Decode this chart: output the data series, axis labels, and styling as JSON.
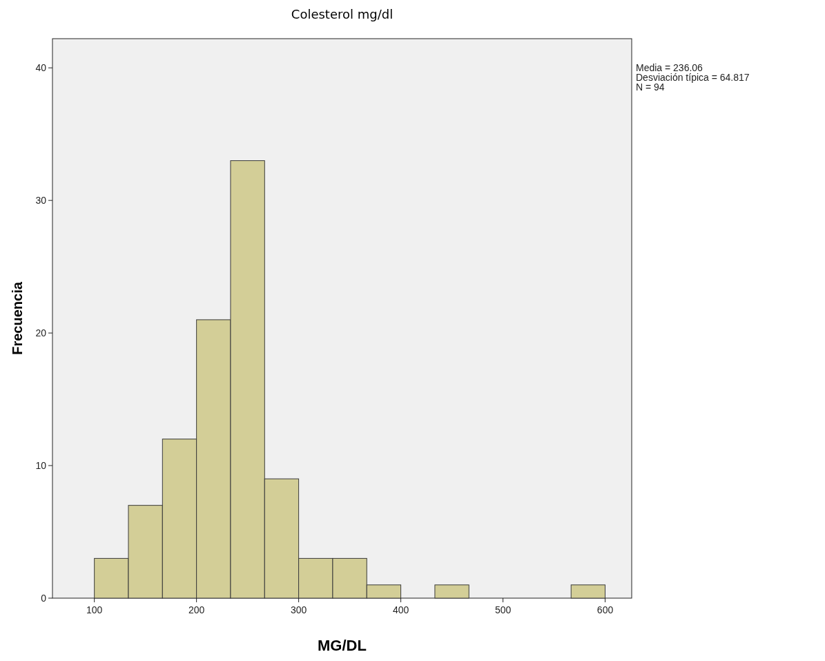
{
  "chart_data": {
    "type": "histogram",
    "title": "Colesterol mg/dl",
    "xlabel": "MG/DL",
    "ylabel": "Frecuencia",
    "bins": [
      100,
      133.33,
      166.67,
      200,
      233.33,
      266.67,
      300,
      333.33,
      366.67,
      400,
      433.33,
      466.67,
      500,
      533.33,
      566.67,
      600
    ],
    "values": [
      3,
      7,
      12,
      21,
      33,
      9,
      3,
      3,
      1,
      0,
      1,
      0,
      0,
      0,
      1
    ],
    "color": "#d3ce97",
    "xlim": [
      59,
      626
    ],
    "xticks": [
      100,
      200,
      300,
      400,
      500,
      600
    ],
    "ylim": [
      0,
      42.2
    ],
    "yticks": [
      0,
      10,
      20,
      30,
      40
    ],
    "grid": false,
    "annotations": [
      "Media = 236.06",
      "Desviación típica = 64.817",
      "N = 94"
    ]
  }
}
